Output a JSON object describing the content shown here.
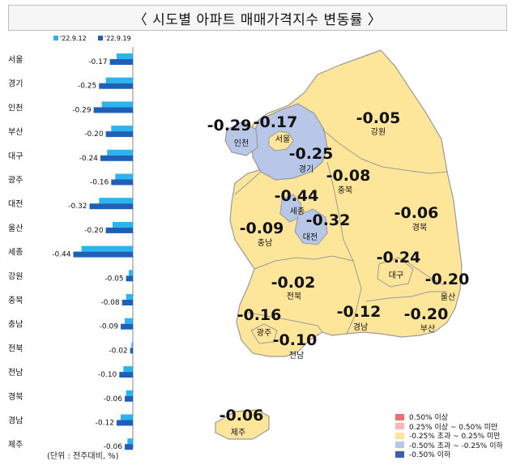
{
  "title": "〈 시도별 아파트 매매가격지수 변동률 〉",
  "unit_note": "(단위 : 전주대비, %)",
  "colors": {
    "prev_week": "#2bb5ef",
    "this_week": "#1f5fb8",
    "land_yellow": "#fde59a",
    "land_blue": "#b8c6e8",
    "border": "#9a9a9a"
  },
  "chart_data": [
    {
      "type": "bar",
      "orientation": "horizontal",
      "categories": [
        "서울",
        "경기",
        "인천",
        "부산",
        "대구",
        "광주",
        "대전",
        "울산",
        "세종",
        "강원",
        "충북",
        "충남",
        "전북",
        "전남",
        "경북",
        "경남",
        "제주"
      ],
      "series": [
        {
          "name": "'22.9.12",
          "values": [
            -0.12,
            -0.2,
            -0.23,
            -0.16,
            -0.19,
            -0.13,
            -0.25,
            -0.15,
            -0.38,
            -0.03,
            -0.05,
            -0.06,
            -0.01,
            -0.07,
            -0.05,
            -0.09,
            -0.04
          ]
        },
        {
          "name": "'22.9.19",
          "values": [
            -0.17,
            -0.25,
            -0.29,
            -0.2,
            -0.24,
            -0.16,
            -0.32,
            -0.2,
            -0.44,
            -0.05,
            -0.08,
            -0.09,
            -0.02,
            -0.1,
            -0.06,
            -0.12,
            -0.06
          ]
        }
      ],
      "data_labels": [
        "-0.17",
        "-0.25",
        "-0.29",
        "-0.20",
        "-0.24",
        "-0.16",
        "-0.32",
        "-0.20",
        "-0.44",
        "-0.05",
        "-0.08",
        "-0.09",
        "-0.02",
        "-0.10",
        "-0.06",
        "-0.12",
        "-0.06"
      ],
      "xlim": [
        -0.45,
        0
      ],
      "legend_position": "top"
    },
    {
      "type": "choropleth",
      "regions": [
        {
          "name": "인천",
          "value": "-0.29",
          "category": "blue"
        },
        {
          "name": "서울",
          "value": "-0.17",
          "category": "yellow"
        },
        {
          "name": "경기",
          "value": "-0.25",
          "category": "blue"
        },
        {
          "name": "강원",
          "value": "-0.05",
          "category": "yellow"
        },
        {
          "name": "충북",
          "value": "-0.08",
          "category": "yellow"
        },
        {
          "name": "세종",
          "value": "-0.44",
          "category": "blue"
        },
        {
          "name": "대전",
          "value": "-0.32",
          "category": "blue"
        },
        {
          "name": "충남",
          "value": "-0.09",
          "category": "yellow"
        },
        {
          "name": "경북",
          "value": "-0.06",
          "category": "yellow"
        },
        {
          "name": "대구",
          "value": "-0.24",
          "category": "yellow"
        },
        {
          "name": "전북",
          "value": "-0.02",
          "category": "yellow"
        },
        {
          "name": "울산",
          "value": "-0.20",
          "category": "yellow"
        },
        {
          "name": "광주",
          "value": "-0.16",
          "category": "yellow"
        },
        {
          "name": "경남",
          "value": "-0.12",
          "category": "yellow"
        },
        {
          "name": "부산",
          "value": "-0.20",
          "category": "yellow"
        },
        {
          "name": "전남",
          "value": "-0.10",
          "category": "yellow"
        },
        {
          "name": "제주",
          "value": "-0.06",
          "category": "yellow"
        }
      ],
      "legend": [
        {
          "label": "0.50% 이상",
          "color": "#ef6f6f"
        },
        {
          "label": "0.25% 이상 ~ 0.50% 미만",
          "color": "#f5b8b8"
        },
        {
          "label": "-0.25% 초과 ~ 0.25% 미만",
          "color": "#fde59a"
        },
        {
          "label": "-0.50% 초과 ~ -0.25% 이하",
          "color": "#b8c6e8"
        },
        {
          "label": "-0.50% 이하",
          "color": "#3c5fb0"
        }
      ]
    }
  ]
}
